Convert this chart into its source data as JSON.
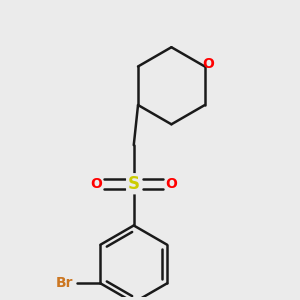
{
  "background_color": "#ebebeb",
  "bond_color": "#1a1a1a",
  "bond_width": 1.8,
  "atom_colors": {
    "O": "#ff0000",
    "S": "#cccc00",
    "Br": "#cc7722"
  },
  "fig_size": [
    3.0,
    3.0
  ],
  "dpi": 100,
  "xlim": [
    0.5,
    5.5
  ],
  "ylim": [
    0.3,
    5.8
  ]
}
